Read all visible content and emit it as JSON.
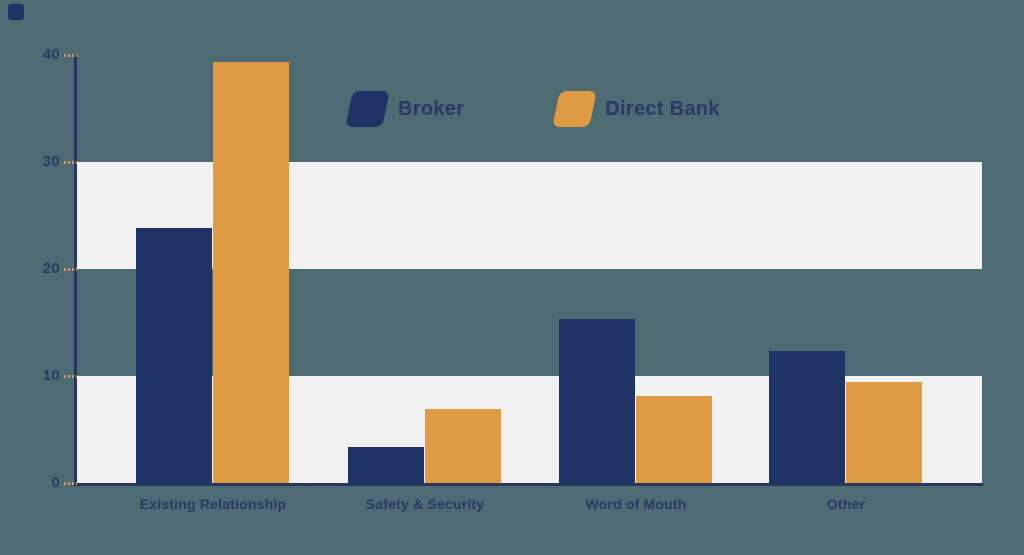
{
  "page": {
    "background_color": "#4E6A72",
    "corner_mark_color": "#1F3366"
  },
  "chart_data": {
    "type": "bar",
    "title": "",
    "xlabel": "",
    "ylabel": "",
    "categories": [
      "Existing Relationship",
      "Safety & Security",
      "Word of Mouth",
      "Other"
    ],
    "series": [
      {
        "name": "Broker",
        "color": "#1F3366",
        "values": [
          23.8,
          3.4,
          15.3,
          12.3
        ]
      },
      {
        "name": "Direct Bank",
        "color": "#DF9A44",
        "values": [
          39.3,
          6.9,
          8.1,
          9.4
        ]
      }
    ],
    "ylim": [
      0,
      40
    ],
    "yticks": [
      0,
      10,
      20,
      30,
      40
    ],
    "grid": false,
    "highlight_bands": [
      [
        20,
        30
      ],
      [
        0,
        10
      ]
    ],
    "band_color": "#F1F1F2",
    "axis_color": "#27375E",
    "tick_mark_color": "#D1995E",
    "text_color": "#2B3A64",
    "legend_position": "top-center"
  }
}
